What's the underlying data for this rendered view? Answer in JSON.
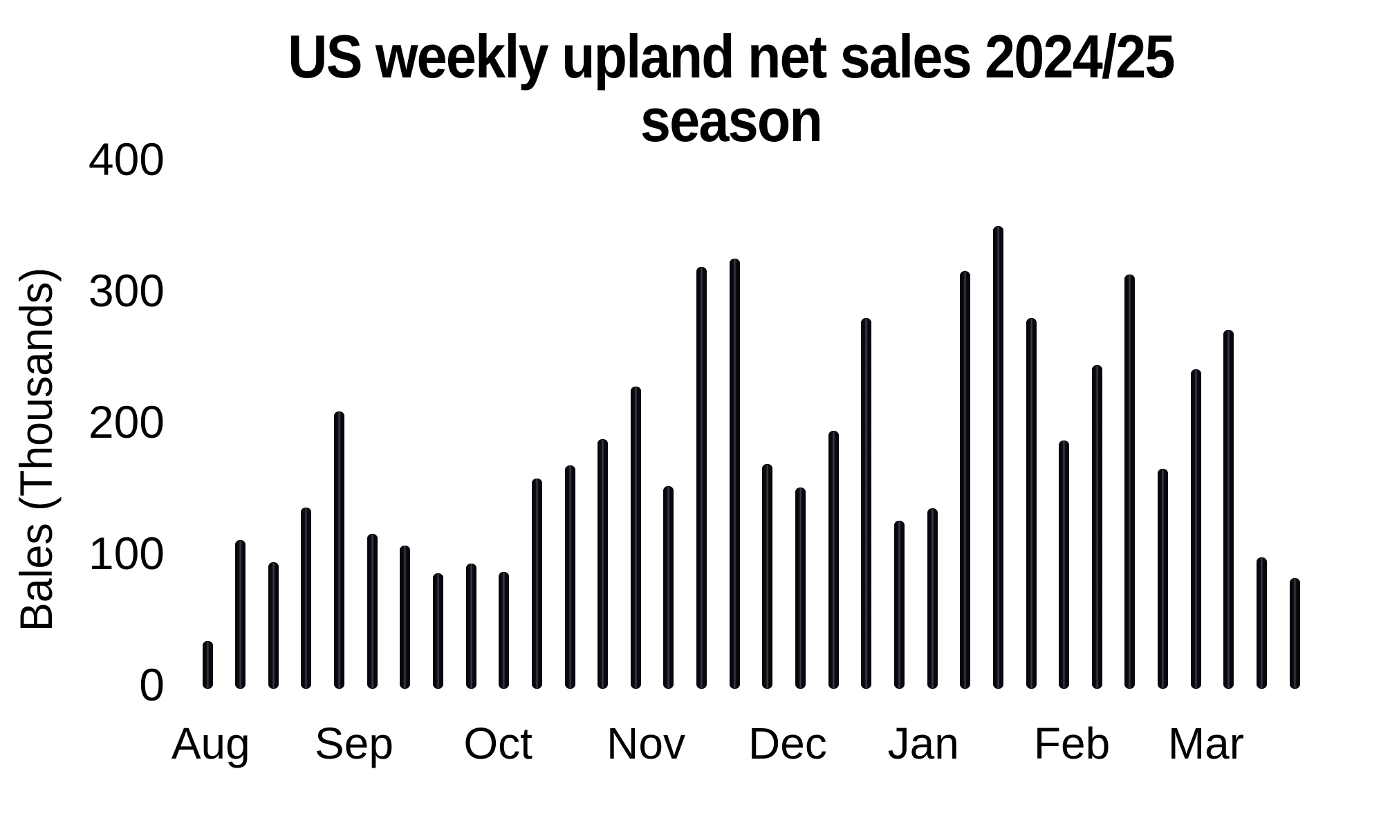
{
  "chart": {
    "title_line1": "US weekly upland net sales 2024/25",
    "title_line2": "season",
    "y_label": "Bales (Thousands)"
  },
  "chart_data": {
    "type": "bar",
    "title": "US weekly upland net sales 2024/25 season",
    "xlabel": "",
    "ylabel": "Bales (Thousands)",
    "ylim": [
      0,
      400
    ],
    "yticks": [
      0,
      100,
      200,
      300,
      400
    ],
    "grid": false,
    "legend": false,
    "background_color": "#ffffff",
    "bar_color": "#0a0a10",
    "x_unit": "week",
    "weeks_count": 34,
    "values": [
      33,
      110,
      93,
      135,
      208,
      115,
      106,
      85,
      92,
      86,
      157,
      167,
      187,
      227,
      151,
      318,
      324,
      168,
      150,
      193,
      279,
      125,
      134,
      315,
      349,
      279,
      186,
      243,
      312,
      164,
      240,
      270,
      97,
      81
    ],
    "months": [
      {
        "label": "Aug",
        "week_center": 0.1
      },
      {
        "label": "Sep",
        "week_center": 4.45
      },
      {
        "label": "Oct",
        "week_center": 8.82
      },
      {
        "label": "Nov",
        "week_center": 13.31
      },
      {
        "label": "Dec",
        "week_center": 17.61
      },
      {
        "label": "Jan",
        "week_center": 21.73
      },
      {
        "label": "Feb",
        "week_center": 26.24
      },
      {
        "label": "Mar",
        "week_center": 30.31
      }
    ]
  }
}
